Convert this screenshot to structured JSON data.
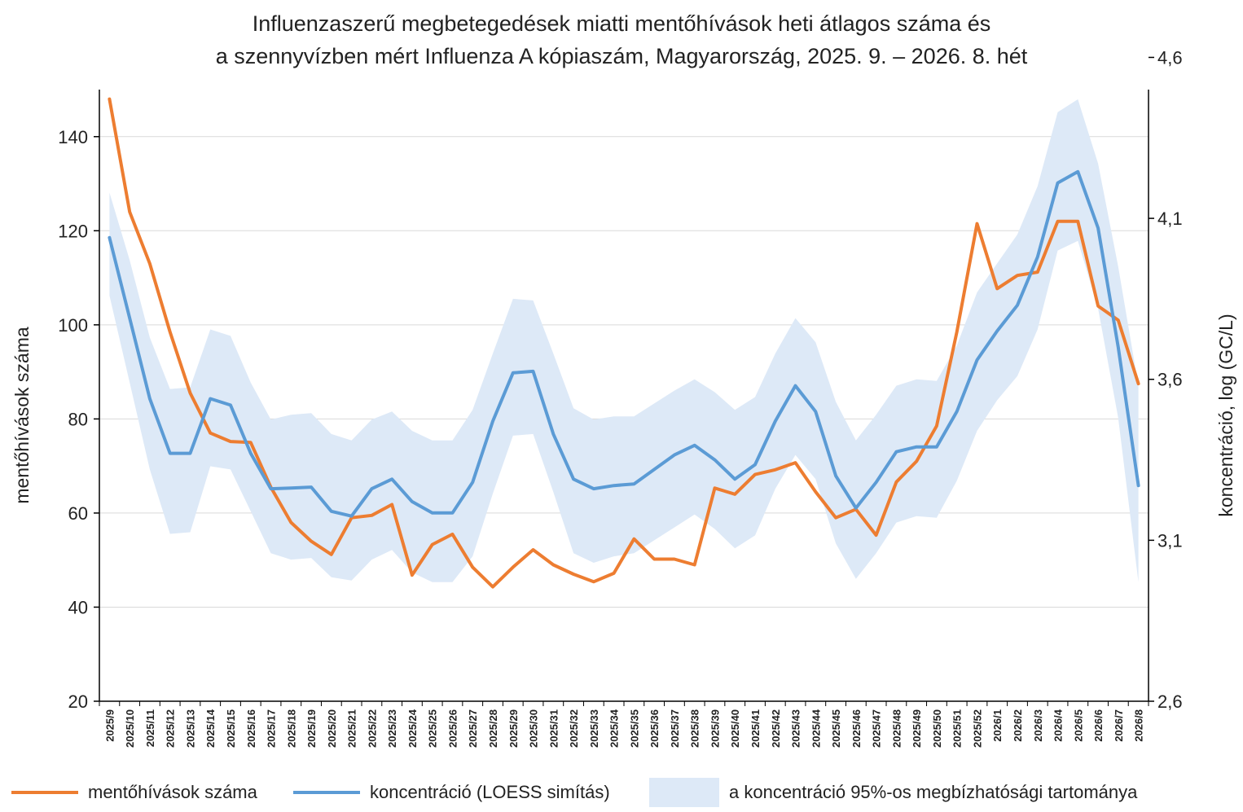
{
  "chart_data": {
    "type": "line",
    "title_line1": "Influenzaszerű megbetegedések miatti mentőhívások heti átlagos száma és",
    "title_line2": "a szennyvízben mért Influenza A kópiaszám, Magyarország, 2025. 9. – 2026. 8. hét",
    "ylabel_left": "mentőhívások száma",
    "ylabel_right": "koncentráció, log (GC/L)",
    "ylim_left": [
      20,
      150
    ],
    "yticks_left": [
      20,
      40,
      60,
      80,
      100,
      120,
      140
    ],
    "ytick_labels_left": [
      "20",
      "40",
      "60",
      "80",
      "100",
      "120",
      "140"
    ],
    "ylim_right": [
      2.6,
      4.5
    ],
    "yticks_right": [
      2.6,
      3.1,
      3.6,
      4.1,
      4.6
    ],
    "ytick_labels_right": [
      "2,6",
      "3,1",
      "3,6",
      "4,1",
      "4,6"
    ],
    "grid": true,
    "categories": [
      "2025/9",
      "2025/10",
      "2025/11",
      "2025/12",
      "2025/13",
      "2025/14",
      "2025/15",
      "2025/16",
      "2025/17",
      "2025/18",
      "2025/19",
      "2025/20",
      "2025/21",
      "2025/22",
      "2025/23",
      "2025/24",
      "2025/25",
      "2025/26",
      "2025/27",
      "2025/28",
      "2025/29",
      "2025/30",
      "2025/31",
      "2025/32",
      "2025/33",
      "2025/34",
      "2025/35",
      "2025/36",
      "2025/37",
      "2025/38",
      "2025/39",
      "2025/40",
      "2025/41",
      "2025/42",
      "2025/43",
      "2025/44",
      "2025/45",
      "2025/46",
      "2025/47",
      "2025/48",
      "2025/49",
      "2025/50",
      "2025/51",
      "2025/52",
      "2026/1",
      "2026/2",
      "2026/3",
      "2026/4",
      "2026/5",
      "2026/6",
      "2026/7",
      "2026/8"
    ],
    "series": [
      {
        "name": "mentőhívások száma",
        "axis": "left",
        "color": "#ed7d31",
        "values": [
          148,
          124,
          113,
          98.5,
          85.5,
          77,
          75.2,
          75,
          65.5,
          58,
          54,
          51.2,
          59,
          59.5,
          61.8,
          46.8,
          53.3,
          55.5,
          48.5,
          44.3,
          48.5,
          52.2,
          49,
          47,
          45.4,
          47.2,
          54.5,
          50.2,
          50.2,
          49,
          65.3,
          64,
          68.2,
          69.2,
          70.7,
          64.5,
          59,
          60.8,
          55.3,
          66.6,
          71,
          78.5,
          98.5,
          121.5,
          107.7,
          110.5,
          111.2,
          122,
          122,
          104,
          101,
          87.5
        ]
      },
      {
        "name": "koncentráció (LOESS simítás)",
        "axis": "right",
        "color": "#5b9bd5",
        "values": [
          4.04,
          3.79,
          3.54,
          3.37,
          3.37,
          3.54,
          3.52,
          3.37,
          3.26,
          3.262,
          3.265,
          3.19,
          3.175,
          3.26,
          3.29,
          3.22,
          3.185,
          3.185,
          3.28,
          3.47,
          3.62,
          3.625,
          3.43,
          3.29,
          3.26,
          3.27,
          3.275,
          3.32,
          3.365,
          3.395,
          3.35,
          3.29,
          3.335,
          3.47,
          3.58,
          3.5,
          3.3,
          3.2,
          3.28,
          3.375,
          3.39,
          3.39,
          3.5,
          3.66,
          3.75,
          3.83,
          3.98,
          4.21,
          4.245,
          4.07,
          3.7,
          3.27
        ]
      }
    ],
    "band": {
      "name": "a koncentráció 95%-os megbízhatósági tartománya",
      "axis": "right",
      "color": "#dde9f7",
      "upper": [
        4.18,
        3.97,
        3.73,
        3.57,
        3.575,
        3.755,
        3.735,
        3.59,
        3.475,
        3.49,
        3.495,
        3.43,
        3.41,
        3.475,
        3.5,
        3.44,
        3.41,
        3.41,
        3.505,
        3.68,
        3.85,
        3.845,
        3.68,
        3.51,
        3.475,
        3.485,
        3.485,
        3.525,
        3.565,
        3.6,
        3.56,
        3.505,
        3.545,
        3.68,
        3.79,
        3.715,
        3.53,
        3.41,
        3.49,
        3.58,
        3.6,
        3.595,
        3.705,
        3.87,
        3.96,
        4.05,
        4.2,
        4.43,
        4.47,
        4.27,
        3.95,
        3.58
      ],
      "lower": [
        3.86,
        3.59,
        3.32,
        3.12,
        3.125,
        3.33,
        3.32,
        3.19,
        3.06,
        3.04,
        3.045,
        2.985,
        2.975,
        3.04,
        3.07,
        3.0,
        2.97,
        2.97,
        3.05,
        3.245,
        3.425,
        3.43,
        3.25,
        3.06,
        3.03,
        3.05,
        3.06,
        3.1,
        3.14,
        3.18,
        3.135,
        3.075,
        3.115,
        3.26,
        3.365,
        3.29,
        3.09,
        2.98,
        3.06,
        3.155,
        3.175,
        3.17,
        3.285,
        3.44,
        3.535,
        3.61,
        3.755,
        4.0,
        4.03,
        3.82,
        3.48,
        2.97
      ]
    },
    "legend": {
      "position": "bottom",
      "items": [
        "mentőhívások száma",
        "koncentráció (LOESS simítás)",
        "a koncentráció 95%-os megbízhatósági tartománya"
      ]
    }
  }
}
